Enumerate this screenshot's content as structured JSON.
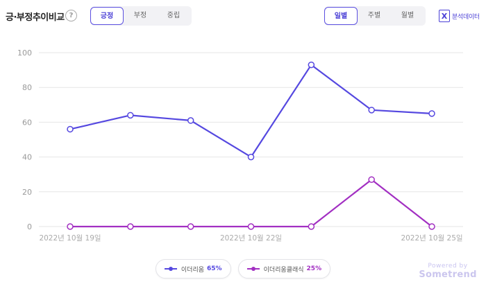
{
  "header": {
    "title": "긍·부정추이비교",
    "help_icon": "?",
    "sentiment_tabs": [
      {
        "label": "긍정",
        "active": true
      },
      {
        "label": "부정",
        "active": false
      },
      {
        "label": "중립",
        "active": false
      }
    ],
    "period_tabs": [
      {
        "label": "일별",
        "active": true
      },
      {
        "label": "주별",
        "active": false
      },
      {
        "label": "월별",
        "active": false
      }
    ],
    "export_label": "분석데이터",
    "export_icon": "X"
  },
  "chart_data": {
    "type": "line",
    "x": [
      "2022-10-19",
      "2022-10-20",
      "2022-10-21",
      "2022-10-22",
      "2022-10-23",
      "2022-10-24",
      "2022-10-25"
    ],
    "x_tick_labels": [
      {
        "index": 0,
        "label": "2022년 10월 19일"
      },
      {
        "index": 3,
        "label": "2022년 10월 22일"
      },
      {
        "index": 6,
        "label": "2022년 10월 25일"
      }
    ],
    "y_ticks": [
      0,
      20,
      40,
      60,
      80,
      100
    ],
    "ylim": [
      0,
      100
    ],
    "grid": true,
    "series": [
      {
        "name": "이더리움",
        "pct": "65%",
        "color": "#5548e0",
        "values": [
          56,
          64,
          61,
          40,
          93,
          67,
          65
        ]
      },
      {
        "name": "이더리움클래식",
        "pct": "25%",
        "color": "#a22fc2",
        "values": [
          0,
          0,
          0,
          0,
          0,
          27,
          0
        ]
      }
    ],
    "legend_position": "bottom-center"
  },
  "powered": {
    "line1": "Powered by",
    "line2": "Sometrend"
  }
}
